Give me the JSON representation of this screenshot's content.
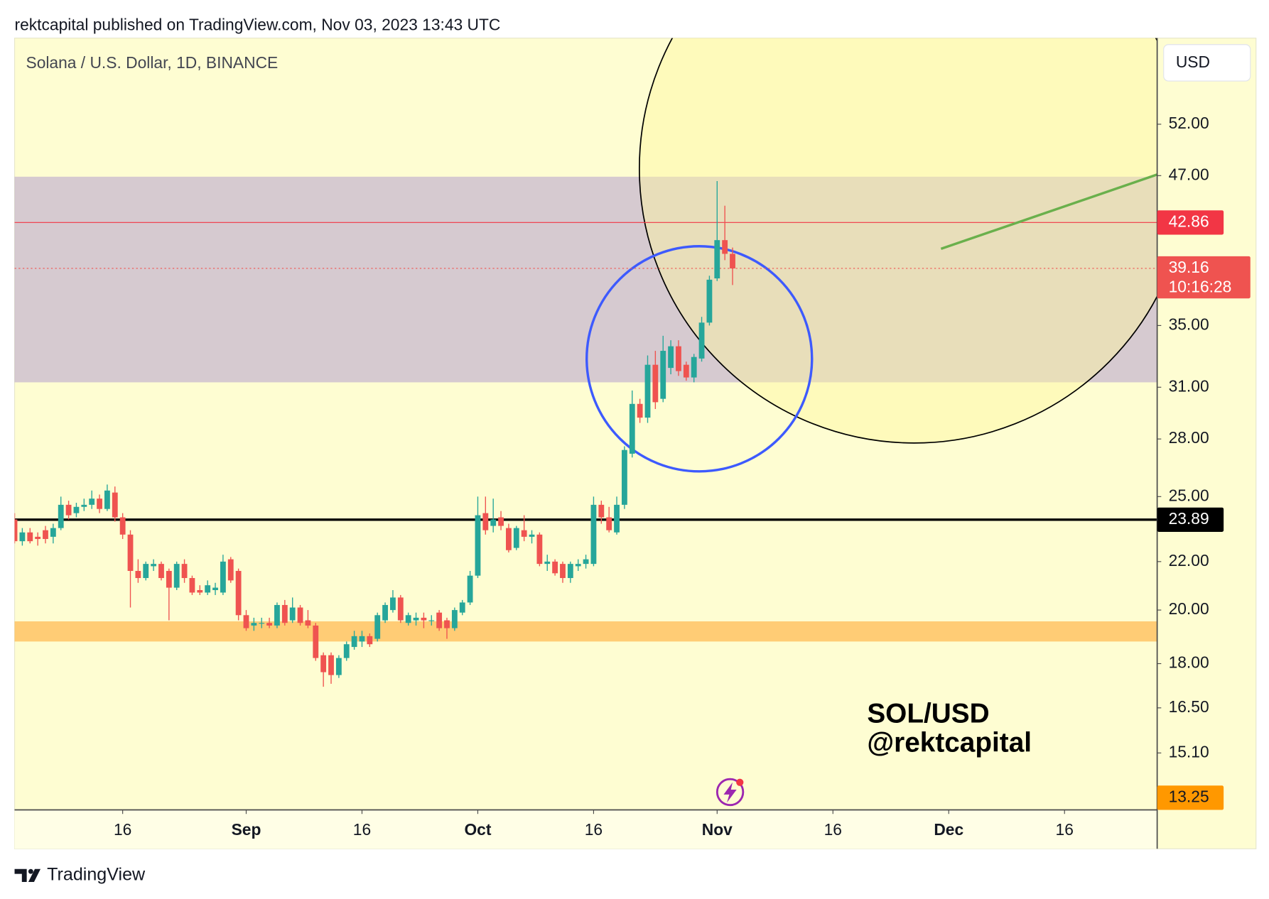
{
  "header": "rektcapital published on TradingView.com, Nov 03, 2023 13:43 UTC",
  "brand": "TradingView",
  "chart_data": {
    "type": "candlestick",
    "title": "Solana / U.S. Dollar, 1D, BINANCE",
    "currency": "USD",
    "log_y": true,
    "grid": false,
    "up_color": "#26a69a",
    "down_color": "#ef5350",
    "x": [
      "08-02",
      "08-03",
      "08-04",
      "08-05",
      "08-06",
      "08-07",
      "08-08",
      "08-09",
      "08-10",
      "08-11",
      "08-12",
      "08-13",
      "08-14",
      "08-15",
      "08-16",
      "08-17",
      "08-18",
      "08-19",
      "08-20",
      "08-21",
      "08-22",
      "08-23",
      "08-24",
      "08-25",
      "08-26",
      "08-27",
      "08-28",
      "08-29",
      "08-30",
      "08-31",
      "09-01",
      "09-02",
      "09-03",
      "09-04",
      "09-05",
      "09-06",
      "09-07",
      "09-08",
      "09-09",
      "09-10",
      "09-11",
      "09-12",
      "09-13",
      "09-14",
      "09-15",
      "09-16",
      "09-17",
      "09-18",
      "09-19",
      "09-20",
      "09-21",
      "09-22",
      "09-23",
      "09-24",
      "09-25",
      "09-26",
      "09-27",
      "09-28",
      "09-29",
      "09-30",
      "10-01",
      "10-02",
      "10-03",
      "10-04",
      "10-05",
      "10-06",
      "10-07",
      "10-08",
      "10-09",
      "10-10",
      "10-11",
      "10-12",
      "10-13",
      "10-14",
      "10-15",
      "10-16",
      "10-17",
      "10-18",
      "10-19",
      "10-20",
      "10-21",
      "10-22",
      "10-23",
      "10-24",
      "10-25",
      "10-26",
      "10-27",
      "10-28",
      "10-29",
      "10-30",
      "10-31",
      "11-01",
      "11-02",
      "11-03"
    ],
    "open": [
      23.9,
      22.9,
      23.3,
      23.1,
      23.4,
      23.1,
      23.5,
      24.6,
      24.2,
      24.5,
      24.6,
      24.9,
      24.4,
      25.2,
      24.0,
      23.2,
      21.6,
      21.3,
      21.8,
      21.9,
      21.6,
      20.9,
      21.9,
      21.3,
      20.8,
      20.7,
      20.8,
      20.7,
      22.1,
      21.6,
      19.8,
      19.4,
      19.5,
      19.5,
      19.4,
      20.2,
      19.6,
      20.1,
      19.6,
      19.4,
      18.3,
      18.3,
      17.6,
      18.2,
      18.6,
      18.8,
      19.0,
      18.9,
      19.6,
      20.0,
      20.5,
      19.5,
      19.6,
      19.7,
      19.6,
      19.9,
      19.6,
      19.3,
      19.9,
      20.3,
      21.4,
      24.2,
      23.6,
      24.0,
      23.5,
      22.6,
      23.4,
      23.1,
      23.2,
      21.9,
      22.0,
      21.9,
      21.3,
      21.8,
      21.9,
      21.9,
      24.6,
      24.0,
      23.3,
      24.6,
      27.2,
      30.0,
      29.2,
      32.4,
      30.3,
      32.2,
      33.6,
      32.4,
      31.6,
      32.8,
      35.2,
      38.4,
      41.4,
      40.3
    ],
    "high": [
      24.2,
      23.5,
      23.5,
      23.3,
      23.6,
      23.7,
      25.0,
      24.8,
      24.7,
      24.9,
      25.3,
      25.1,
      25.6,
      25.5,
      24.2,
      23.4,
      22.1,
      22.0,
      22.1,
      22.0,
      21.7,
      22.0,
      22.1,
      21.4,
      21.0,
      21.2,
      21.1,
      22.3,
      22.2,
      21.7,
      20.0,
      19.7,
      19.7,
      19.7,
      20.3,
      20.4,
      20.5,
      20.2,
      20.0,
      19.5,
      18.4,
      18.4,
      18.3,
      18.8,
      19.2,
      19.2,
      19.1,
      19.9,
      20.3,
      20.8,
      20.6,
      19.9,
      19.9,
      19.9,
      19.8,
      20.0,
      19.7,
      20.1,
      20.4,
      21.6,
      25.0,
      25.0,
      24.9,
      24.3,
      23.7,
      23.6,
      24.1,
      23.4,
      23.3,
      22.3,
      22.1,
      22.0,
      22.0,
      22.1,
      22.3,
      25.0,
      24.8,
      24.5,
      25.0,
      27.6,
      30.8,
      30.3,
      33.0,
      33.3,
      34.3,
      34.0,
      34.0,
      32.6,
      33.1,
      35.6,
      38.6,
      46.5,
      44.3,
      40.8
    ],
    "low": [
      22.8,
      22.7,
      22.8,
      22.7,
      22.8,
      22.8,
      23.4,
      23.9,
      24.0,
      24.3,
      24.4,
      24.2,
      24.3,
      23.8,
      23.0,
      20.1,
      21.1,
      21.2,
      21.6,
      21.2,
      19.6,
      20.8,
      21.1,
      20.6,
      20.6,
      20.6,
      20.6,
      20.6,
      21.1,
      19.6,
      19.2,
      19.2,
      19.3,
      19.3,
      19.3,
      19.4,
      19.5,
      19.4,
      19.3,
      18.1,
      17.2,
      17.3,
      17.5,
      18.1,
      18.5,
      18.6,
      18.6,
      18.8,
      19.5,
      19.9,
      19.5,
      19.4,
      19.4,
      19.3,
      19.4,
      19.2,
      18.9,
      19.2,
      19.8,
      20.2,
      21.3,
      23.2,
      23.3,
      23.4,
      22.4,
      22.5,
      22.9,
      22.8,
      21.8,
      21.6,
      21.4,
      21.1,
      21.1,
      21.6,
      21.7,
      21.8,
      23.7,
      23.3,
      23.2,
      24.4,
      27.0,
      28.9,
      28.9,
      29.7,
      30.1,
      31.8,
      31.7,
      31.4,
      31.3,
      32.6,
      35.0,
      38.2,
      39.8,
      37.9
    ],
    "close": [
      22.9,
      23.3,
      22.9,
      23.0,
      23.0,
      23.5,
      24.6,
      24.1,
      24.5,
      24.6,
      24.9,
      24.4,
      25.3,
      24.0,
      23.2,
      21.6,
      21.3,
      21.9,
      21.9,
      21.3,
      20.9,
      21.9,
      21.3,
      20.7,
      20.7,
      21.0,
      20.9,
      22.0,
      21.2,
      19.8,
      19.3,
      19.5,
      19.5,
      19.4,
      20.2,
      19.5,
      20.1,
      19.5,
      19.4,
      18.2,
      17.7,
      17.6,
      18.2,
      18.7,
      19.0,
      19.0,
      18.7,
      19.8,
      20.2,
      20.5,
      19.6,
      19.8,
      19.7,
      19.6,
      19.6,
      19.3,
      19.3,
      20.0,
      20.3,
      21.4,
      24.1,
      23.4,
      23.9,
      23.6,
      22.5,
      23.5,
      23.1,
      23.2,
      21.9,
      22.0,
      21.5,
      21.3,
      21.9,
      21.9,
      22.1,
      24.6,
      24.0,
      23.4,
      24.6,
      27.4,
      30.0,
      29.2,
      32.4,
      30.1,
      33.3,
      33.6,
      32.0,
      31.6,
      32.9,
      35.2,
      38.3,
      41.4,
      40.3,
      39.16
    ],
    "xlim": [
      "08-02",
      "12-28"
    ],
    "xticks": [
      {
        "value": "08-16",
        "label": "16"
      },
      {
        "value": "09-01",
        "label": "Sep"
      },
      {
        "value": "09-16",
        "label": "16"
      },
      {
        "value": "10-01",
        "label": "Oct"
      },
      {
        "value": "10-16",
        "label": "16"
      },
      {
        "value": "11-01",
        "label": "Nov"
      },
      {
        "value": "11-16",
        "label": "16"
      },
      {
        "value": "12-01",
        "label": "Dec"
      },
      {
        "value": "12-16",
        "label": "16"
      }
    ],
    "ylim": [
      13.5,
      61.6
    ],
    "yticks": [
      {
        "value": 52,
        "label": "52.00"
      },
      {
        "value": 47,
        "label": "47.00"
      },
      {
        "value": 35,
        "label": "35.00"
      },
      {
        "value": 31,
        "label": "31.00"
      },
      {
        "value": 28,
        "label": "28.00"
      },
      {
        "value": 25,
        "label": "25.00"
      },
      {
        "value": 22,
        "label": "22.00"
      },
      {
        "value": 20,
        "label": "20.00"
      },
      {
        "value": 18,
        "label": "18.00"
      },
      {
        "value": 16.5,
        "label": "16.50"
      },
      {
        "value": 15.1,
        "label": "15.10"
      }
    ],
    "zones": [
      {
        "from": 31.3,
        "to": 46.9,
        "color": "#9575cd"
      },
      {
        "from": 18.8,
        "to": 19.56,
        "color": "#ffb74d"
      }
    ],
    "price_labels": [
      {
        "value": 42.86,
        "color": "#f23645",
        "line": "solid"
      },
      {
        "value": 39.16,
        "color": "#ef5350",
        "line": "dotted"
      },
      {
        "value": 23.89,
        "color": "#000000",
        "line": "bold"
      },
      {
        "value": 13.25,
        "color": "#ff9800",
        "line": "none"
      }
    ],
    "countdown": "10:16:28",
    "trend_line": {
      "x": [
        "11-30",
        "12-28"
      ],
      "values": [
        40.7,
        47.1
      ],
      "color": "#6ab04c"
    },
    "watermark": [
      "SOL/USD",
      "@rektcapital"
    ]
  }
}
